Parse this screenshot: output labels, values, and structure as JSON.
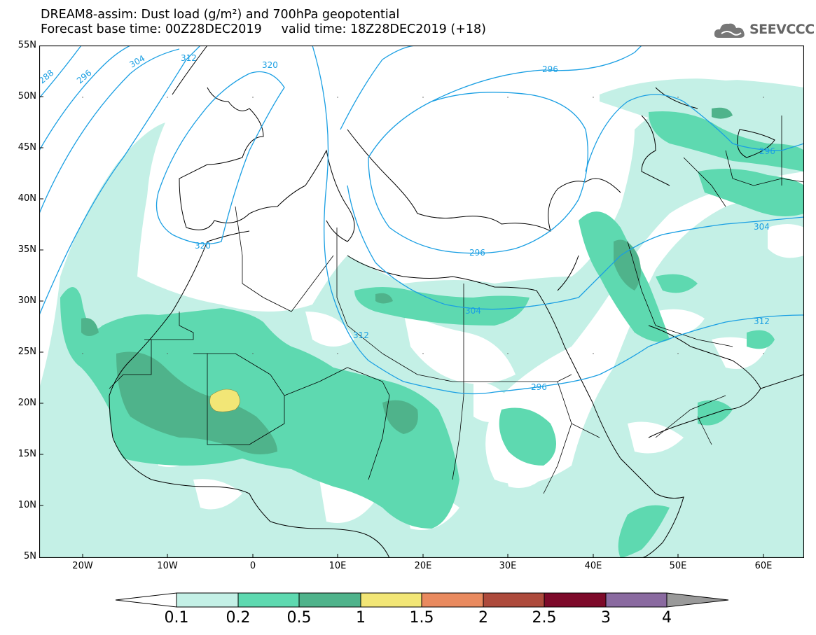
{
  "header": {
    "title_line1": "DREAM8-assim: Dust load (g/m²) and 700hPa geopotential",
    "title_line2": "Forecast base time: 00Z28DEC2019     valid time: 18Z28DEC2019 (+18)"
  },
  "logo": {
    "text": "SEEVCCC",
    "icon": "cloud-icon"
  },
  "map": {
    "lat_labels": [
      "55N",
      "50N",
      "45N",
      "40N",
      "35N",
      "30N",
      "25N",
      "20N",
      "15N",
      "10N",
      "5N"
    ],
    "lon_labels": [
      "20W",
      "10W",
      "0",
      "10E",
      "20E",
      "30E",
      "40E",
      "50E",
      "60E"
    ],
    "contour_labels": [
      "288",
      "296",
      "304",
      "312",
      "320",
      "320",
      "296",
      "296",
      "304",
      "304",
      "312",
      "312",
      "296",
      "296"
    ]
  },
  "legend": {
    "labels": [
      "0.1",
      "0.2",
      "0.5",
      "1",
      "1.5",
      "2",
      "2.5",
      "3",
      "4"
    ],
    "colors": [
      "#c4f0e6",
      "#5ed9b0",
      "#4fb38b",
      "#f2e676",
      "#e98a5f",
      "#ad4a3c",
      "#7d0a2a",
      "#8a6aa0"
    ],
    "under_color": "#ffffff",
    "over_color": "#9a9a9a"
  }
}
